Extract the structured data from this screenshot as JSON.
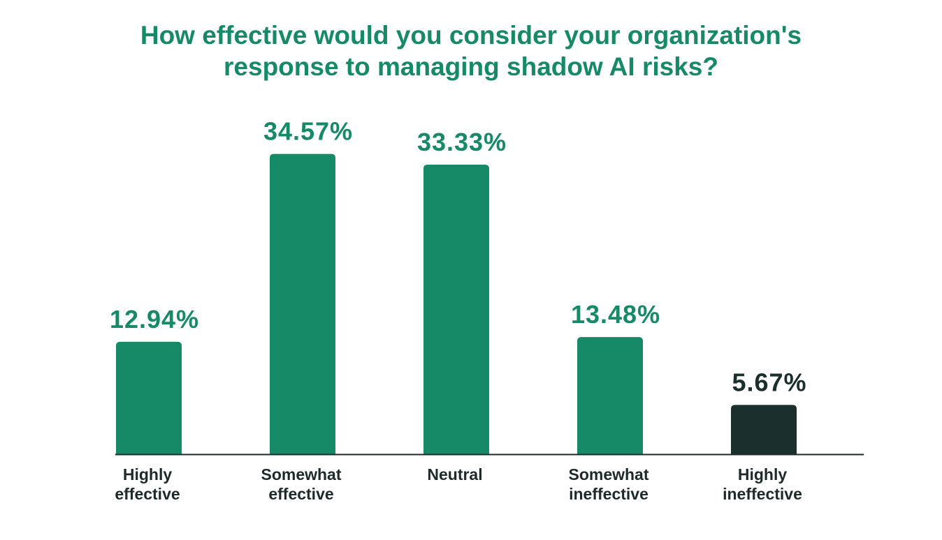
{
  "colors": {
    "primary": "#168a67",
    "accent": "#1b2f2c",
    "axis": "#1e2a28",
    "text": "#1e2a28"
  },
  "chart_data": {
    "type": "bar",
    "title_lines": [
      "How effective would you consider your organization's",
      "response to managing shadow AI risks?"
    ],
    "categories": [
      [
        "Highly",
        "effective"
      ],
      [
        "Somewhat",
        "effective"
      ],
      [
        "Neutral"
      ],
      [
        "Somewhat",
        "ineffective"
      ],
      [
        "Highly",
        "ineffective"
      ]
    ],
    "values": [
      12.94,
      34.57,
      33.33,
      13.48,
      5.67
    ],
    "value_labels": [
      "12.94%",
      "34.57%",
      "33.33%",
      "13.48%",
      "5.67%"
    ],
    "highlight_index": 4,
    "ylim": [
      0,
      40
    ],
    "grid": false,
    "legend": "none",
    "xlabel": "",
    "ylabel": ""
  }
}
